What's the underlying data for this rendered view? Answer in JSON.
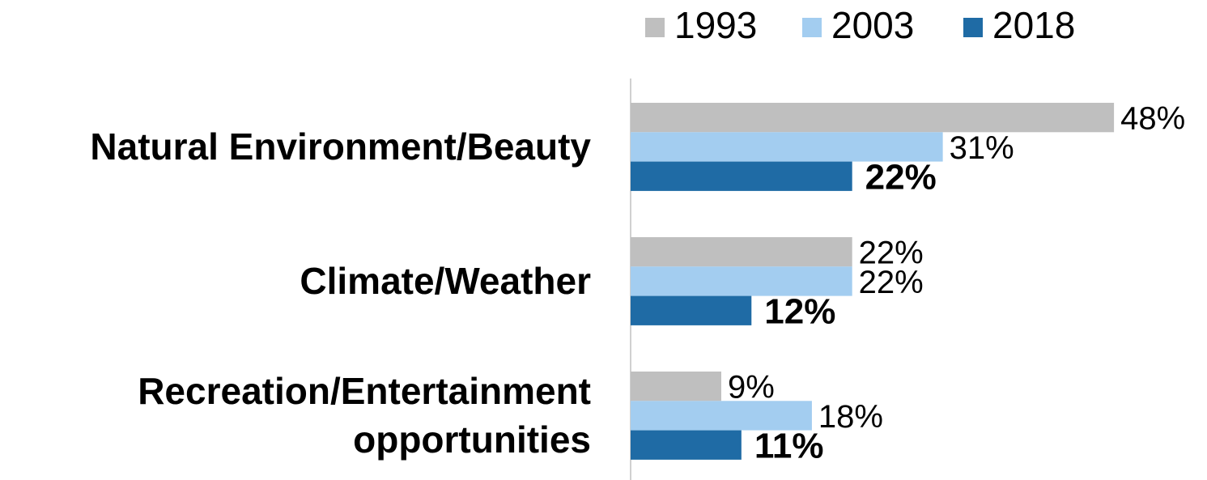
{
  "chart_data": {
    "type": "hbar",
    "categories": [
      "Natural Environment/Beauty",
      "Climate/Weather",
      "Recreation/Entertainment\nopportunities"
    ],
    "series": [
      {
        "name": "1993",
        "color": "#bfbfbf",
        "values": [
          48,
          22,
          9
        ],
        "value_labels": [
          "48%",
          "22%",
          "9%"
        ]
      },
      {
        "name": "2003",
        "color": "#a3cdf0",
        "values": [
          31,
          22,
          18
        ],
        "value_labels": [
          "31%",
          "22%",
          "18%"
        ]
      },
      {
        "name": "2018",
        "color": "#1f6ba5",
        "values": [
          22,
          12,
          11
        ],
        "value_labels": [
          "22%",
          "12%",
          "11%"
        ]
      }
    ],
    "xlim": [
      0,
      50
    ],
    "legend": "top-right"
  }
}
